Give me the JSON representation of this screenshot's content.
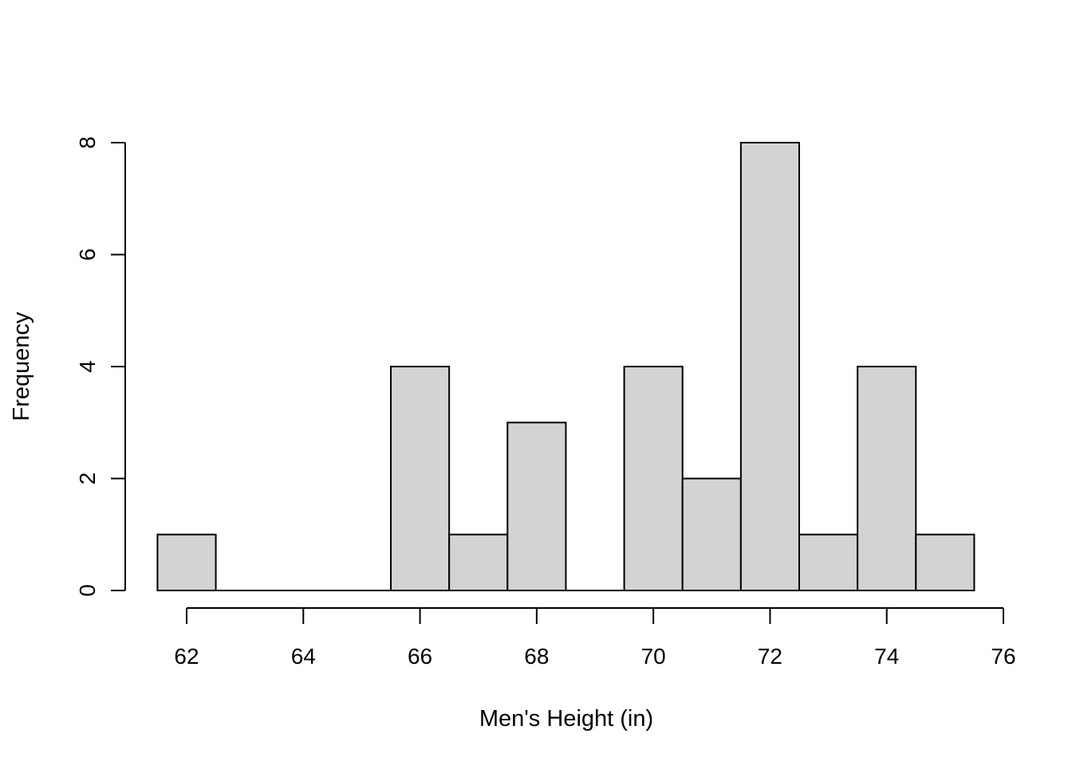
{
  "chart_data": {
    "type": "bar",
    "subtype": "histogram",
    "title": "",
    "xlabel": "Men's Height (in)",
    "ylabel": "Frequency",
    "bins": [
      {
        "start": 61.5,
        "end": 62.5,
        "count": 1
      },
      {
        "start": 62.5,
        "end": 63.5,
        "count": 0
      },
      {
        "start": 63.5,
        "end": 64.5,
        "count": 0
      },
      {
        "start": 64.5,
        "end": 65.5,
        "count": 0
      },
      {
        "start": 65.5,
        "end": 66.5,
        "count": 4
      },
      {
        "start": 66.5,
        "end": 67.5,
        "count": 1
      },
      {
        "start": 67.5,
        "end": 68.5,
        "count": 3
      },
      {
        "start": 68.5,
        "end": 69.5,
        "count": 0
      },
      {
        "start": 69.5,
        "end": 70.5,
        "count": 4
      },
      {
        "start": 70.5,
        "end": 71.5,
        "count": 2
      },
      {
        "start": 71.5,
        "end": 72.5,
        "count": 8
      },
      {
        "start": 72.5,
        "end": 73.5,
        "count": 1
      },
      {
        "start": 73.5,
        "end": 74.5,
        "count": 4
      },
      {
        "start": 74.5,
        "end": 75.5,
        "count": 1
      }
    ],
    "xticks": [
      "62",
      "64",
      "66",
      "68",
      "70",
      "72",
      "74",
      "76"
    ],
    "yticks": [
      "0",
      "2",
      "4",
      "6",
      "8"
    ],
    "xlim": [
      62,
      76
    ],
    "ylim": [
      0,
      8
    ],
    "grid": false,
    "legend": "none",
    "bar_fill": "#d3d3d3",
    "bar_stroke": "#000000"
  }
}
